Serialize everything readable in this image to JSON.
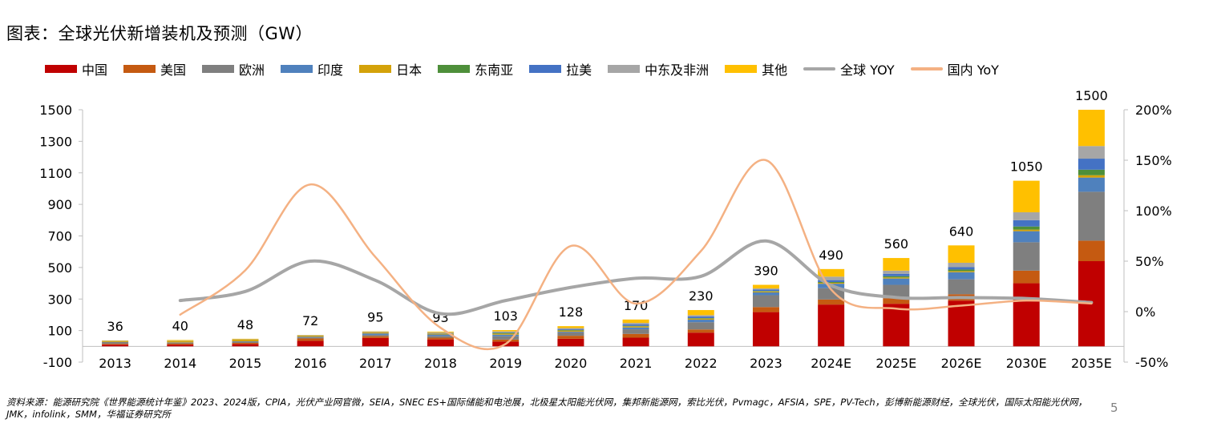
{
  "title": "图表：全球光伏新增装机及预测（GW）",
  "legend": [
    {
      "label": "中国",
      "color": "#C00000",
      "kind": "bar"
    },
    {
      "label": "美国",
      "color": "#C55A11",
      "kind": "bar"
    },
    {
      "label": "欧洲",
      "color": "#7F7F7F",
      "kind": "bar"
    },
    {
      "label": "印度",
      "color": "#4F81BD",
      "kind": "bar"
    },
    {
      "label": "日本",
      "color": "#D4A20A",
      "kind": "bar"
    },
    {
      "label": "东南亚",
      "color": "#4E8F3A",
      "kind": "bar"
    },
    {
      "label": "拉美",
      "color": "#4472C4",
      "kind": "bar"
    },
    {
      "label": "中东及非洲",
      "color": "#A6A6A6",
      "kind": "bar"
    },
    {
      "label": "其他",
      "color": "#FFC000",
      "kind": "bar"
    },
    {
      "label": "全球 YOY",
      "color": "#A6A6A6",
      "kind": "line"
    },
    {
      "label": "国内 YoY",
      "color": "#F4B183",
      "kind": "line"
    }
  ],
  "chart_data": {
    "type": "bar",
    "stacked": true,
    "categories": [
      "2013",
      "2014",
      "2015",
      "2016",
      "2017",
      "2018",
      "2019",
      "2020",
      "2021",
      "2022",
      "2023",
      "2024E",
      "2025E",
      "2026E",
      "2030E",
      "2035E"
    ],
    "totals": [
      36,
      40,
      48,
      72,
      95,
      93,
      103,
      128,
      170,
      230,
      390,
      490,
      560,
      640,
      1050,
      1500
    ],
    "total_labels": [
      "36",
      "40",
      "48",
      "72",
      "95",
      "93",
      "103",
      "128",
      "170",
      "230",
      "390",
      "490",
      "560",
      "640",
      "1050",
      "1500"
    ],
    "series": [
      {
        "name": "中国",
        "values": [
          11,
          11,
          15,
          35,
          53,
          44,
          30,
          48,
          55,
          87,
          217,
          265,
          270,
          290,
          400,
          540
        ]
      },
      {
        "name": "美国",
        "values": [
          5,
          6,
          7,
          15,
          11,
          11,
          13,
          19,
          24,
          20,
          32,
          32,
          35,
          40,
          80,
          130
        ]
      },
      {
        "name": "欧洲",
        "values": [
          11,
          7,
          8,
          7,
          9,
          11,
          21,
          22,
          29,
          46,
          75,
          72,
          85,
          95,
          180,
          310
        ]
      },
      {
        "name": "印度",
        "values": [
          1,
          1,
          2,
          4,
          9,
          9,
          10,
          4,
          12,
          16,
          18,
          28,
          40,
          45,
          70,
          90
        ]
      },
      {
        "name": "日本",
        "values": [
          7,
          9,
          10,
          7,
          7,
          6,
          7,
          7,
          7,
          7,
          6,
          6,
          7,
          7,
          10,
          15
        ]
      },
      {
        "name": "东南亚",
        "values": [
          0.5,
          0.5,
          0.5,
          0.5,
          0.5,
          1,
          5,
          3,
          3,
          3,
          3,
          5,
          8,
          10,
          20,
          35
        ]
      },
      {
        "name": "拉美",
        "values": [
          0.5,
          0.5,
          1,
          1,
          1,
          2,
          3,
          5,
          9,
          10,
          10,
          12,
          15,
          15,
          40,
          70
        ]
      },
      {
        "name": "中东及非洲",
        "values": [
          0.5,
          1,
          1,
          1,
          2,
          4,
          6,
          8,
          10,
          9,
          6,
          22,
          20,
          28,
          50,
          80
        ]
      },
      {
        "name": "其他",
        "values": [
          0.5,
          4,
          3.5,
          1.5,
          2.5,
          5,
          8,
          12,
          21,
          32,
          23,
          48,
          80,
          110,
          200,
          230
        ]
      }
    ],
    "line_series": [
      {
        "name": "全球 YOY",
        "axis": "right",
        "x": [
          "2014",
          "2015",
          "2016",
          "2017",
          "2018",
          "2019",
          "2020",
          "2021",
          "2022",
          "2023",
          "2024E",
          "2025E",
          "2026E",
          "2030E",
          "2035E"
        ],
        "values": [
          11,
          20,
          50,
          31,
          -2,
          11,
          24,
          33,
          35,
          70,
          26,
          14,
          14,
          13,
          9
        ]
      },
      {
        "name": "国内 YoY",
        "axis": "right",
        "x": [
          "2014",
          "2015",
          "2016",
          "2017",
          "2018",
          "2019",
          "2020",
          "2021",
          "2022",
          "2023",
          "2024E",
          "2025E",
          "2026E",
          "2030E",
          "2035E"
        ],
        "values": [
          -3,
          41,
          126,
          54,
          -16,
          -32,
          65,
          8,
          60,
          150,
          22,
          3,
          6,
          11,
          8
        ]
      }
    ],
    "y_left": {
      "min": -100,
      "max": 1500,
      "ticks": [
        "-100",
        "100",
        "300",
        "500",
        "700",
        "900",
        "1100",
        "1300",
        "1500"
      ]
    },
    "y_right": {
      "min": -50,
      "max": 200,
      "ticks": [
        "-50%",
        "0%",
        "50%",
        "100%",
        "150%",
        "200%"
      ]
    },
    "legend_position": "top",
    "grid": false
  },
  "source": "资料来源：能源研究院《世界能源统计年鉴》2023、2024版，CPIA，光伏产业网官微，SEIA，SNEC ES+国际储能和电池展，北极星太阳能光伏网，集邦新能源网，索比光伏，Pvmagc，AFSIA，SPE，PV-Tech，彭博新能源财经，全球光伏，国际太阳能光伏网，JMK，infolink，SMM，华福证券研究所",
  "page_number": "5"
}
